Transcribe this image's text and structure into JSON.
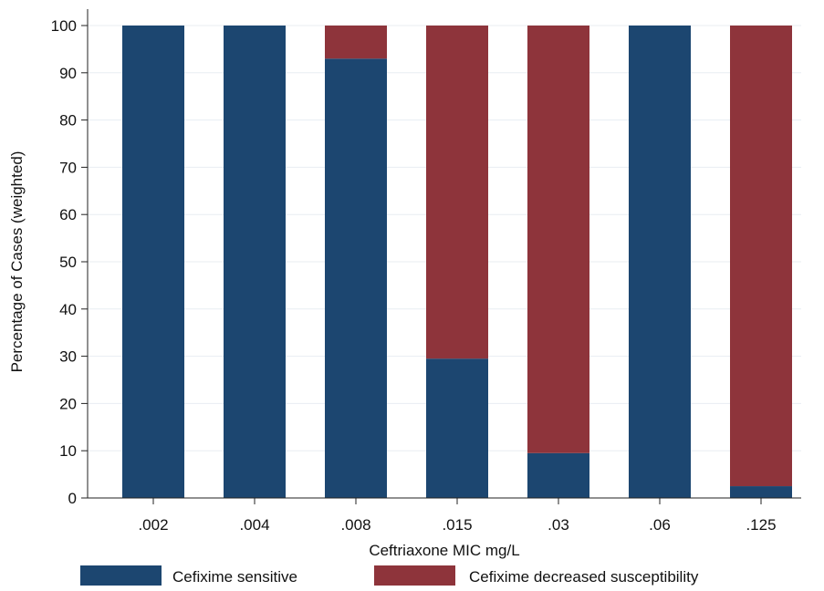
{
  "chart_data": {
    "type": "bar",
    "stacked": true,
    "title": "",
    "xlabel": "Ceftriaxone MIC mg/L",
    "ylabel": "Percentage of Cases (weighted)",
    "ylim": [
      0,
      100
    ],
    "yticks": [
      0,
      10,
      20,
      30,
      40,
      50,
      60,
      70,
      80,
      90,
      100
    ],
    "grid": true,
    "legend_position": "bottom",
    "categories": [
      ".002",
      ".004",
      ".008",
      ".015",
      ".03",
      ".06",
      ".125"
    ],
    "series": [
      {
        "name": "Cefixime sensitive",
        "color": "#1c4670",
        "values": [
          100,
          100,
          93,
          29.5,
          9.5,
          100,
          2.5
        ]
      },
      {
        "name": "Cefixime decreased susceptibility",
        "color": "#8e343b",
        "values": [
          0,
          0,
          7,
          70.5,
          90.5,
          0,
          97.5
        ]
      }
    ]
  }
}
